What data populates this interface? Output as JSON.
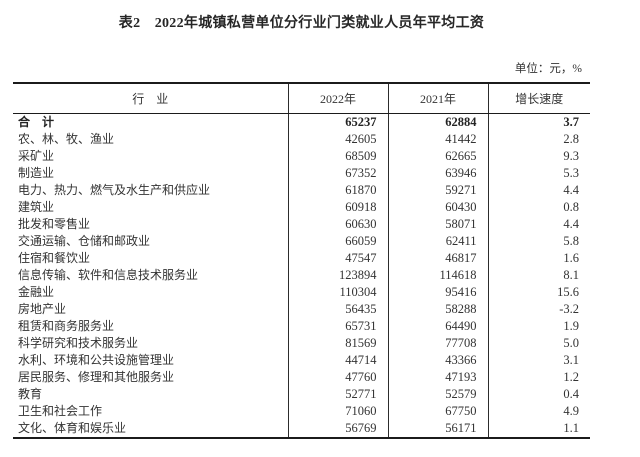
{
  "title": "表2　2022年城镇私营单位分行业门类就业人员年平均工资",
  "unit_note": "单位：元，%",
  "table": {
    "columns": [
      "行　业",
      "2022年",
      "2021年",
      "增长速度"
    ],
    "rows": [
      {
        "industry": "合　计",
        "y2022": "65237",
        "y2021": "62884",
        "growth": "3.7",
        "bold": true
      },
      {
        "industry": "农、林、牧、渔业",
        "y2022": "42605",
        "y2021": "41442",
        "growth": "2.8",
        "bold": false
      },
      {
        "industry": "采矿业",
        "y2022": "68509",
        "y2021": "62665",
        "growth": "9.3",
        "bold": false
      },
      {
        "industry": "制造业",
        "y2022": "67352",
        "y2021": "63946",
        "growth": "5.3",
        "bold": false
      },
      {
        "industry": "电力、热力、燃气及水生产和供应业",
        "y2022": "61870",
        "y2021": "59271",
        "growth": "4.4",
        "bold": false
      },
      {
        "industry": "建筑业",
        "y2022": "60918",
        "y2021": "60430",
        "growth": "0.8",
        "bold": false
      },
      {
        "industry": "批发和零售业",
        "y2022": "60630",
        "y2021": "58071",
        "growth": "4.4",
        "bold": false
      },
      {
        "industry": "交通运输、仓储和邮政业",
        "y2022": "66059",
        "y2021": "62411",
        "growth": "5.8",
        "bold": false
      },
      {
        "industry": "住宿和餐饮业",
        "y2022": "47547",
        "y2021": "46817",
        "growth": "1.6",
        "bold": false
      },
      {
        "industry": "信息传输、软件和信息技术服务业",
        "y2022": "123894",
        "y2021": "114618",
        "growth": "8.1",
        "bold": false
      },
      {
        "industry": "金融业",
        "y2022": "110304",
        "y2021": "95416",
        "growth": "15.6",
        "bold": false
      },
      {
        "industry": "房地产业",
        "y2022": "56435",
        "y2021": "58288",
        "growth": "-3.2",
        "bold": false
      },
      {
        "industry": "租赁和商务服务业",
        "y2022": "65731",
        "y2021": "64490",
        "growth": "1.9",
        "bold": false
      },
      {
        "industry": "科学研究和技术服务业",
        "y2022": "81569",
        "y2021": "77708",
        "growth": "5.0",
        "bold": false
      },
      {
        "industry": "水利、环境和公共设施管理业",
        "y2022": "44714",
        "y2021": "43366",
        "growth": "3.1",
        "bold": false
      },
      {
        "industry": "居民服务、修理和其他服务业",
        "y2022": "47760",
        "y2021": "47193",
        "growth": "1.2",
        "bold": false
      },
      {
        "industry": "教育",
        "y2022": "52771",
        "y2021": "52579",
        "growth": "0.4",
        "bold": false
      },
      {
        "industry": "卫生和社会工作",
        "y2022": "71060",
        "y2021": "67750",
        "growth": "4.9",
        "bold": false
      },
      {
        "industry": "文化、体育和娱乐业",
        "y2022": "56769",
        "y2021": "56171",
        "growth": "1.1",
        "bold": false
      }
    ]
  }
}
